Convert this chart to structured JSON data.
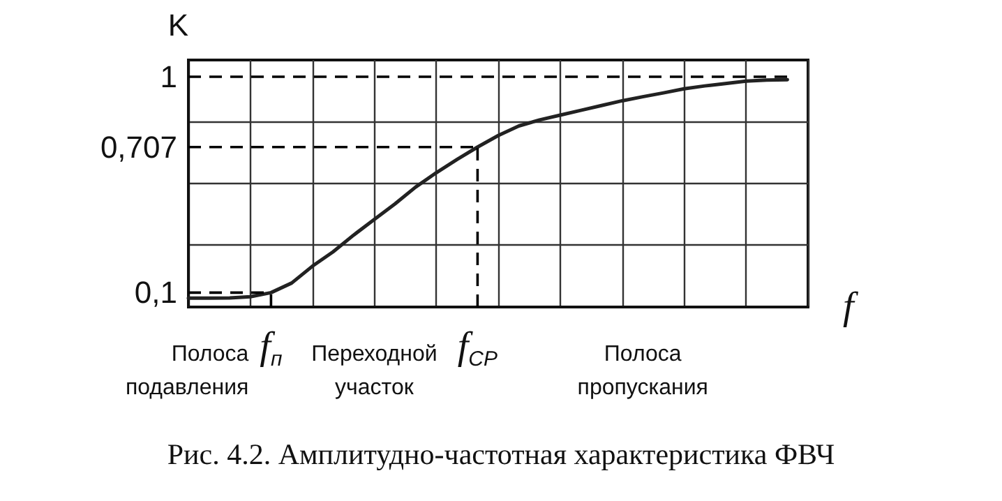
{
  "chart_data": {
    "type": "line",
    "title": "Рис. 4.2. Амплитудно-частотная характеристика ФВЧ",
    "xlabel": "f",
    "ylabel": "K",
    "categories": [
      null,
      null,
      null,
      null,
      "f$_{п}$",
      null,
      null,
      null,
      null,
      null,
      null,
      null,
      null,
      null,
      "f$_{CP}$",
      null,
      null,
      null,
      null,
      null,
      null,
      null,
      null,
      null,
      null,
      null,
      null,
      null,
      null,
      null,
      null
    ],
    "series": [
      {
        "color": "#222222",
        "values": [
          0.077,
          0.077,
          0.078,
          0.083,
          0.1,
          0.14,
          0.21,
          0.27,
          0.34,
          0.405,
          0.47,
          0.54,
          0.6,
          0.655,
          0.707,
          0.755,
          0.795,
          0.82,
          0.84,
          0.86,
          0.88,
          0.9,
          0.917,
          0.933,
          0.95,
          0.962,
          0.972,
          0.982,
          0.986,
          0.988,
          null
        ]
      }
    ],
    "ylim": [
      0.04,
      1.07
    ],
    "yticks": [
      {
        "value": 0.1,
        "label": "0,1"
      },
      {
        "value": 0.3,
        "label": null
      },
      {
        "value": 0.557,
        "label": null
      },
      {
        "value": 0.707,
        "label": "0,707"
      },
      {
        "value": 0.813,
        "label": null
      },
      {
        "value": 1,
        "label": "1"
      }
    ],
    "grid": true,
    "marker": "none",
    "line_style": "solid",
    "ref_lines": [
      {
        "axis": "y",
        "value": 1,
        "line_style": "dashed"
      },
      {
        "axis": "y",
        "value": 0.707,
        "line_style": "dashed"
      },
      {
        "axis": "y",
        "value": 0.1,
        "line_style": "dashed"
      }
    ],
    "annotations": [
      "Полоса\nподавления",
      "Переходной\nучасток",
      "Полоса\nпропускания"
    ]
  }
}
